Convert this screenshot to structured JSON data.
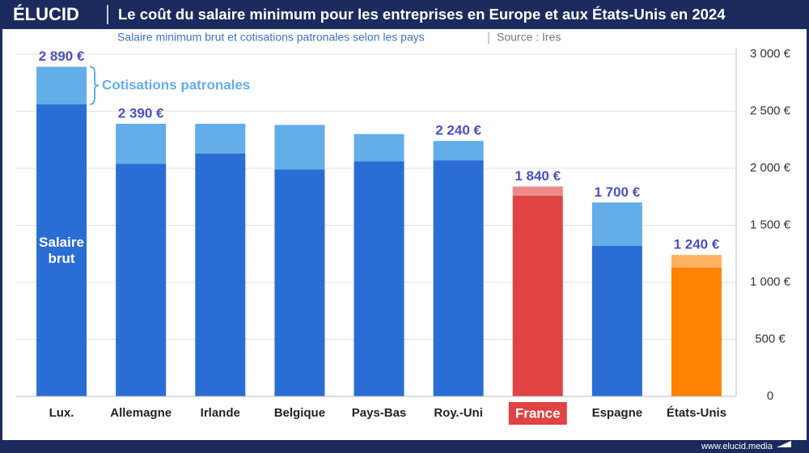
{
  "brand": "ÉLUCID",
  "footer": "www.elucid.media",
  "chart_data": {
    "type": "stacked-bar",
    "title": "Le coût du salaire minimum pour les entreprises en Europe et aux États-Unis en 2024",
    "subtitle": "Salaire minimum brut et cotisations patronales selon les pays",
    "source": "Source : Ires",
    "categories": [
      "Lux.",
      "Allemagne",
      "Irlande",
      "Belgique",
      "Pays-Bas",
      "Roy.-Uni",
      "France",
      "Espagne",
      "États-Unis"
    ],
    "highlighted_category": 6,
    "series": [
      {
        "name": "Salaire brut",
        "color": "#2a6dd5",
        "colors": [
          "#2a6dd5",
          "#2a6dd5",
          "#2a6dd5",
          "#2a6dd5",
          "#2a6dd5",
          "#2a6dd5",
          "#e04343",
          "#2a6dd5",
          "#ff8200"
        ],
        "values": [
          2560,
          2040,
          2130,
          1990,
          2060,
          2070,
          1760,
          1320,
          1130
        ]
      },
      {
        "name": "Cotisations patronales",
        "color": "#63ade9",
        "colors": [
          "#63ade9",
          "#63ade9",
          "#63ade9",
          "#63ade9",
          "#63ade9",
          "#63ade9",
          "#ec8a8a",
          "#63ade9",
          "#ffb061"
        ],
        "values": [
          330,
          350,
          260,
          390,
          240,
          170,
          80,
          380,
          110
        ]
      }
    ],
    "totals": [
      2890,
      2390,
      null,
      null,
      null,
      2240,
      1840,
      1700,
      1240
    ],
    "total_labels": [
      "2 890 €",
      "2 390 €",
      null,
      null,
      null,
      "2 240 €",
      "1 840 €",
      "1 700 €",
      "1 240 €"
    ],
    "ylim": [
      0,
      3000
    ],
    "yticks": [
      0,
      {
        "value": 500,
        "label": "500 €"
      },
      {
        "value": 1000,
        "label": "1 000 €"
      },
      {
        "value": 1500,
        "label": "1 500 €"
      },
      {
        "value": 2000,
        "label": "2 000 €"
      },
      {
        "value": 2500,
        "label": "2 500 €"
      },
      {
        "value": 3000,
        "label": "3 000 €"
      }
    ],
    "grid": true
  }
}
